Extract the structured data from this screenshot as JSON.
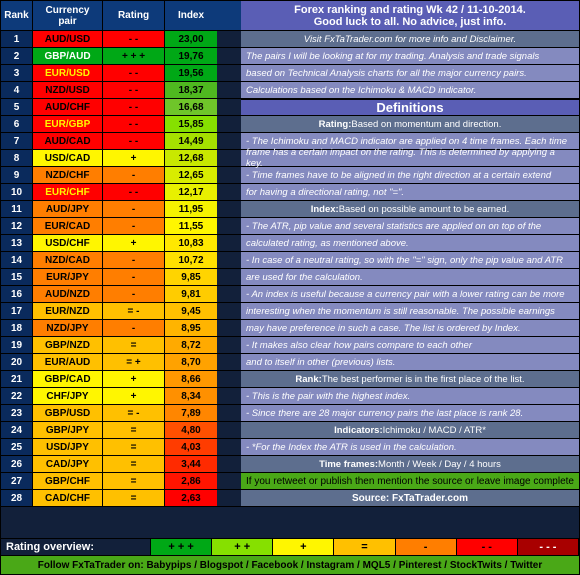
{
  "header": {
    "rank": "Rank",
    "pair": "Currency pair",
    "rating": "Rating",
    "index": "Index"
  },
  "title": {
    "line1": "Forex ranking and rating Wk 42 / 11-10-2014.",
    "line2": "Good luck to all. No advice, just info."
  },
  "info1": "Visit FxTaTrader.com for more info and Disclaimer.",
  "intro": [
    "The pairs I will be looking at for my trading. Analysis and trade signals",
    "based on Technical Analysis charts for all the major currency pairs.",
    "Calculations based on the Ichimoku & MACD indicator."
  ],
  "defTitle": "Definitions",
  "ratingH": {
    "b": "Rating:",
    "n": " Based on momentum and direction."
  },
  "ratingL": [
    "- The Ichimoku and MACD indicator are applied on 4 time frames. Each time",
    "  frame has a certain impact on the rating. This is determined by applying a key.",
    "- Time frames have to be aligned in the right direction at  a certain extend",
    "  for having a directional rating, not \"=\"."
  ],
  "indexH": {
    "b": "Index:",
    "n": " Based on possible amount to be earned."
  },
  "indexL": [
    "- The ATR, pip value and several statistics are applied on on top of the",
    "  calculated rating, as mentioned above.",
    "- In case of a neutral rating, so with the \"=\" sign, only the pip value and ATR",
    "  are used for the calculation.",
    "- An index is useful because a currency pair with a lower rating can be more",
    "  interesting when the momentum is still reasonable. The possible earnings",
    "  may have preference in such a case. The list is ordered by Index.",
    "- It makes also clear how pairs compare to each other",
    "  and to itself in other (previous) lists."
  ],
  "rankH": {
    "b": "Rank:",
    "n": " The best performer is in the first place of the list."
  },
  "rankL": [
    "- This is the pair with the highest index.",
    "- Since there are 28 major currency pairs the last place is rank 28."
  ],
  "indH": {
    "b": "Indicators:",
    "n": " Ichimoku / MACD / ATR*"
  },
  "indL": [
    "- *For the Index the ATR is used in the calculation."
  ],
  "tfH": {
    "b": "Time frames:",
    "n": " Month / Week / Day / 4 hours"
  },
  "retweet": "If you retweet or publish then mention the source or leave image complete",
  "source": "Source: FxTaTrader.com",
  "overview": {
    "label": "Rating overview:",
    "cells": [
      {
        "t": "+ + +",
        "bg": "#00a816"
      },
      {
        "t": "+ +",
        "bg": "#86e000"
      },
      {
        "t": "+",
        "bg": "#fff600"
      },
      {
        "t": "=",
        "bg": "#ffc000"
      },
      {
        "t": "-",
        "bg": "#ff7e00"
      },
      {
        "t": "- -",
        "bg": "#ff0000"
      },
      {
        "t": "- - -",
        "bg": "#a80000",
        "fg": "#fff"
      }
    ]
  },
  "follow": "Follow FxTaTrader on: Babypips / Blogspot / Facebook / Instagram / MQL5 / Pinterest / StockTwits / Twitter",
  "colors": {
    "green3": "#00a816",
    "green2": "#86e000",
    "yellow": "#fff600",
    "orange": "#ffc000",
    "orange2": "#ff7e00",
    "red": "#ff0000",
    "dred": "#a80000"
  },
  "rows": [
    {
      "r": 1,
      "p": "AUD/USD",
      "rt": "- -",
      "rc": "#ff0000",
      "pc": "#ff0000",
      "i": "23,00",
      "ic": "#00a816"
    },
    {
      "r": 2,
      "p": "GBP/AUD",
      "rt": "+ + +",
      "rc": "#00a816",
      "pc": "#00a816",
      "i": "19,76",
      "ic": "#00a816",
      "pfg": "#fff"
    },
    {
      "r": 3,
      "p": "EUR/USD",
      "rt": "- -",
      "rc": "#ff0000",
      "pc": "#ff0000",
      "i": "19,56",
      "ic": "#00a816",
      "pfg": "#fff600"
    },
    {
      "r": 4,
      "p": "NZD/USD",
      "rt": "- -",
      "rc": "#ff0000",
      "pc": "#ff0000",
      "i": "18,37",
      "ic": "#4fb820"
    },
    {
      "r": 5,
      "p": "AUD/CHF",
      "rt": "- -",
      "rc": "#ff0000",
      "pc": "#ff0000",
      "i": "16,68",
      "ic": "#6fc52a"
    },
    {
      "r": 6,
      "p": "EUR/GBP",
      "rt": "- -",
      "rc": "#ff0000",
      "pc": "#ff0000",
      "i": "15,85",
      "ic": "#86e000",
      "pfg": "#fff600"
    },
    {
      "r": 7,
      "p": "AUD/CAD",
      "rt": "- -",
      "rc": "#ff0000",
      "pc": "#ff0000",
      "i": "14,49",
      "ic": "#a5e000"
    },
    {
      "r": 8,
      "p": "USD/CAD",
      "rt": "+",
      "rc": "#fff600",
      "pc": "#fff600",
      "i": "12,68",
      "ic": "#c8e800"
    },
    {
      "r": 9,
      "p": "NZD/CHF",
      "rt": "-",
      "rc": "#ff7e00",
      "pc": "#ff7e00",
      "i": "12,65",
      "ic": "#d8ec00"
    },
    {
      "r": 10,
      "p": "EUR/CHF",
      "rt": "- -",
      "rc": "#ff0000",
      "pc": "#ff0000",
      "i": "12,17",
      "ic": "#e8f000",
      "pfg": "#fff600"
    },
    {
      "r": 11,
      "p": "AUD/JPY",
      "rt": "-",
      "rc": "#ff7e00",
      "pc": "#ff7e00",
      "i": "11,95",
      "ic": "#f5f300"
    },
    {
      "r": 12,
      "p": "EUR/CAD",
      "rt": "-",
      "rc": "#ff7e00",
      "pc": "#ff7e00",
      "i": "11,55",
      "ic": "#fff600"
    },
    {
      "r": 13,
      "p": "USD/CHF",
      "rt": "+",
      "rc": "#fff600",
      "pc": "#fff600",
      "i": "10,83",
      "ic": "#ffe800"
    },
    {
      "r": 14,
      "p": "NZD/CAD",
      "rt": "-",
      "rc": "#ff7e00",
      "pc": "#ff7e00",
      "i": "10,72",
      "ic": "#ffe000"
    },
    {
      "r": 15,
      "p": "EUR/JPY",
      "rt": "-",
      "rc": "#ff7e00",
      "pc": "#ff7e00",
      "i": "9,85",
      "ic": "#ffd400"
    },
    {
      "r": 16,
      "p": "AUD/NZD",
      "rt": "-",
      "rc": "#ff7e00",
      "pc": "#ff7e00",
      "i": "9,81",
      "ic": "#ffcc00"
    },
    {
      "r": 17,
      "p": "EUR/NZD",
      "rt": "= -",
      "rc": "#ffc000",
      "pc": "#ffc000",
      "i": "9,45",
      "ic": "#ffc000"
    },
    {
      "r": 18,
      "p": "NZD/JPY",
      "rt": "-",
      "rc": "#ff7e00",
      "pc": "#ff7e00",
      "i": "8,95",
      "ic": "#ffb400"
    },
    {
      "r": 19,
      "p": "GBP/NZD",
      "rt": "=",
      "rc": "#ffc000",
      "pc": "#ffc000",
      "i": "8,72",
      "ic": "#ffaa00"
    },
    {
      "r": 20,
      "p": "EUR/AUD",
      "rt": "= +",
      "rc": "#ffc000",
      "pc": "#ffc000",
      "i": "8,70",
      "ic": "#ffa200"
    },
    {
      "r": 21,
      "p": "GBP/CAD",
      "rt": "+",
      "rc": "#fff600",
      "pc": "#fff600",
      "i": "8,66",
      "ic": "#ff9800"
    },
    {
      "r": 22,
      "p": "CHF/JPY",
      "rt": "+",
      "rc": "#fff600",
      "pc": "#fff600",
      "i": "8,34",
      "ic": "#ff9000"
    },
    {
      "r": 23,
      "p": "GBP/USD",
      "rt": "= -",
      "rc": "#ffc000",
      "pc": "#ffc000",
      "i": "7,89",
      "ic": "#ff8600"
    },
    {
      "r": 24,
      "p": "GBP/JPY",
      "rt": "=",
      "rc": "#ffc000",
      "pc": "#ffc000",
      "i": "4,80",
      "ic": "#ff5000"
    },
    {
      "r": 25,
      "p": "USD/JPY",
      "rt": "=",
      "rc": "#ffc000",
      "pc": "#ffc000",
      "i": "4,03",
      "ic": "#ff3c00"
    },
    {
      "r": 26,
      "p": "CAD/JPY",
      "rt": "=",
      "rc": "#ffc000",
      "pc": "#ffc000",
      "i": "3,44",
      "ic": "#ff2a00"
    },
    {
      "r": 27,
      "p": "GBP/CHF",
      "rt": "=",
      "rc": "#ffc000",
      "pc": "#ffc000",
      "i": "2,86",
      "ic": "#ff1400"
    },
    {
      "r": 28,
      "p": "CAD/CHF",
      "rt": "=",
      "rc": "#ffc000",
      "pc": "#ffc000",
      "i": "2,63",
      "ic": "#ff0000"
    }
  ]
}
